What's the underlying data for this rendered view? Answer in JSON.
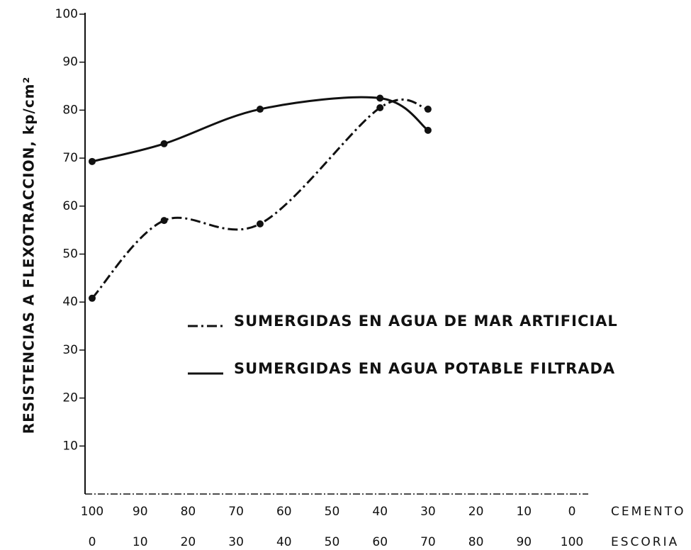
{
  "chart_data": {
    "type": "line",
    "ylabel": "RESISTENCIAS A FLEXOTRACCION, kp/cm²",
    "xlabel": "ESCORIA",
    "x2label": "CEMENTO",
    "x": [
      0,
      15,
      35,
      60,
      70
    ],
    "xlim": [
      0,
      100
    ],
    "xticks": [
      0,
      10,
      20,
      30,
      40,
      50,
      60,
      70,
      80,
      90,
      100
    ],
    "x2lim": [
      100,
      0
    ],
    "x2ticks": [
      100,
      90,
      80,
      70,
      60,
      50,
      40,
      30,
      20,
      10,
      0
    ],
    "ylim": [
      0,
      100
    ],
    "yticks": [
      10,
      20,
      30,
      40,
      50,
      60,
      70,
      80,
      90,
      100
    ],
    "series": [
      {
        "name": "SUMERGIDAS EN AGUA DE MAR ARTIFICIAL",
        "color": "#111111",
        "style": "dashdot",
        "values": [
          40.8,
          57,
          56.3,
          80.5,
          80.2
        ]
      },
      {
        "name": "SUMERGIDAS EN AGUA POTABLE FILTRADA",
        "color": "#111111",
        "style": "solid",
        "values": [
          69.3,
          73,
          80.2,
          82.5,
          75.8
        ]
      }
    ]
  }
}
